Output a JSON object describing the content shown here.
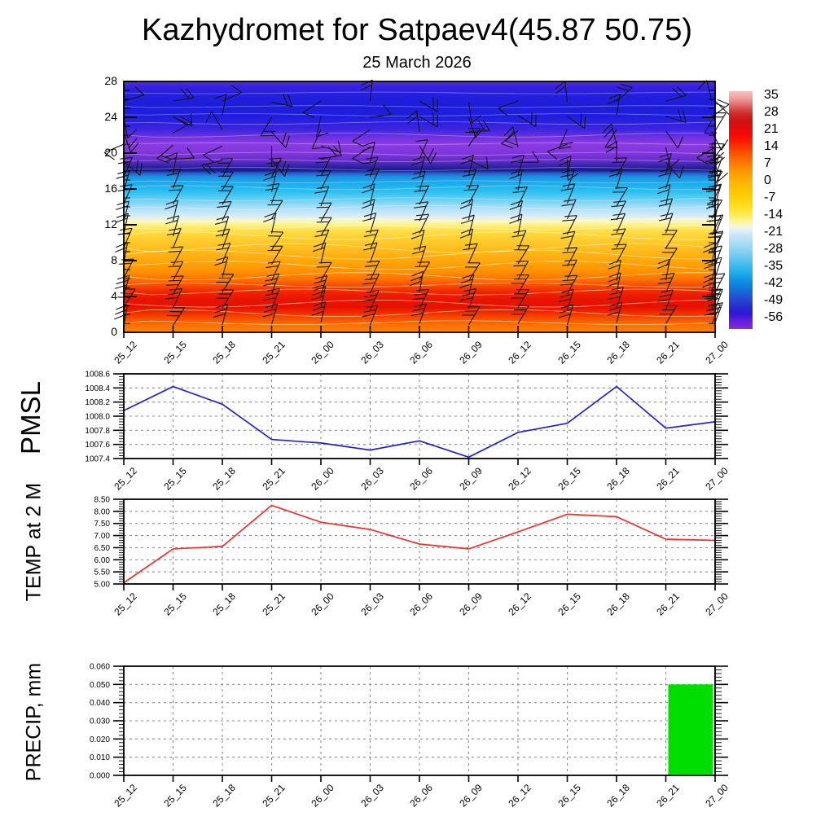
{
  "title": "Kazhydromet for Satpaev4(45.87 50.75)",
  "subtitle": "25 March 2026",
  "colors": {
    "background": "#ffffff",
    "frame": "#000000",
    "grid": "#8f8f8f",
    "wind_barb": "#151515",
    "contour_line": "#ffffd2",
    "pmsl_line": "#2323cc",
    "temp_line": "#f03030",
    "precip_bar": "#00dd00"
  },
  "chart_data": {
    "x_categories": [
      "25_12",
      "25_15",
      "25_18",
      "25_21",
      "26_00",
      "26_03",
      "26_06",
      "26_09",
      "26_12",
      "26_15",
      "26_18",
      "26_21",
      "27_00"
    ],
    "panels": [
      {
        "type": "heatmap",
        "name": "temperature-height cross-section with wind barbs",
        "ylim": [
          0,
          28
        ],
        "yticks": [
          0,
          4,
          8,
          12,
          16,
          20,
          24,
          28
        ],
        "colorbar_ticks": [
          "35",
          "28",
          "21",
          "14",
          "7",
          "0",
          "-7",
          "-14",
          "-21",
          "-28",
          "-35",
          "-42",
          "-49",
          "-56"
        ],
        "gradient_stops": [
          [
            0,
            "#5a30d2"
          ],
          [
            2,
            "#3522e0"
          ],
          [
            5,
            "#2520de"
          ],
          [
            9,
            "#1d1dd8"
          ],
          [
            14,
            "#1e1ede"
          ],
          [
            19,
            "#3a25e0"
          ],
          [
            22,
            "#6c30e0"
          ],
          [
            25,
            "#8a3ce2"
          ],
          [
            29,
            "#7e34da"
          ],
          [
            32,
            "#5e2ac6"
          ],
          [
            34.5,
            "#23209a"
          ],
          [
            35.5,
            "#1b1b86"
          ],
          [
            36.5,
            "#2c58c8"
          ],
          [
            38,
            "#1e90e0"
          ],
          [
            40,
            "#18a8ec"
          ],
          [
            44,
            "#2cc0f2"
          ],
          [
            47,
            "#66cff4"
          ],
          [
            50,
            "#a5def7"
          ],
          [
            53,
            "#cfeaf9"
          ],
          [
            55,
            "#ecf4e2"
          ],
          [
            56,
            "#fdf7b4"
          ],
          [
            57.5,
            "#ffee7e"
          ],
          [
            59,
            "#ffe255"
          ],
          [
            61,
            "#ffd63a"
          ],
          [
            65,
            "#ffc527"
          ],
          [
            69,
            "#ffb215"
          ],
          [
            73,
            "#ffa008"
          ],
          [
            76,
            "#ff8f00"
          ],
          [
            79,
            "#fd7000"
          ],
          [
            81.5,
            "#f84a00"
          ],
          [
            84,
            "#f02500"
          ],
          [
            87,
            "#e91300"
          ],
          [
            90,
            "#e81100"
          ],
          [
            92,
            "#ee2a00"
          ],
          [
            94.5,
            "#f64f00"
          ],
          [
            97,
            "#fc6f00"
          ],
          [
            100,
            "#ff8400"
          ]
        ],
        "colorbar_stops": [
          [
            0,
            "#f7c0c0"
          ],
          [
            3,
            "#f0a0a0"
          ],
          [
            6,
            "#e06868"
          ],
          [
            9,
            "#d03030"
          ],
          [
            12,
            "#cd1414"
          ],
          [
            15,
            "#df0d0d"
          ],
          [
            18,
            "#f40808"
          ],
          [
            21,
            "#fd1b00"
          ],
          [
            25,
            "#ff4600"
          ],
          [
            29,
            "#ff6f00"
          ],
          [
            33,
            "#ff9200"
          ],
          [
            38,
            "#ffb300"
          ],
          [
            43,
            "#ffcb00"
          ],
          [
            48,
            "#ffdd18"
          ],
          [
            52,
            "#ffec52"
          ],
          [
            55,
            "#fdf6a0"
          ],
          [
            57.5,
            "#eef5ef"
          ],
          [
            60,
            "#cfe9f8"
          ],
          [
            64,
            "#a8dcf4"
          ],
          [
            68,
            "#7fcff1"
          ],
          [
            72,
            "#4fc0ee"
          ],
          [
            76,
            "#22aeea"
          ],
          [
            79,
            "#1097e4"
          ],
          [
            82,
            "#0d7edc"
          ],
          [
            85,
            "#1c62d8"
          ],
          [
            88,
            "#2544d2"
          ],
          [
            91,
            "#2629cc"
          ],
          [
            93.5,
            "#2b18d2"
          ],
          [
            96,
            "#5a1cdc"
          ],
          [
            100,
            "#8f26e6"
          ]
        ]
      },
      {
        "type": "line",
        "name": "PMSL",
        "color": "#2323cc",
        "ylim": [
          1007.4,
          1008.6
        ],
        "yticks": [
          1007.4,
          1007.6,
          1007.8,
          1008.0,
          1008.2,
          1008.4,
          1008.6
        ],
        "ylabels": [
          "1007.4",
          "1007.6",
          "1007.8",
          "1008.0",
          "1008.2",
          "1008.4",
          "1008.6"
        ],
        "minor_step": 0.04,
        "values": [
          1008.08,
          1008.42,
          1008.17,
          1007.67,
          1007.62,
          1007.52,
          1007.65,
          1007.42,
          1007.77,
          1007.9,
          1008.42,
          1007.83,
          1007.92
        ]
      },
      {
        "type": "line",
        "name": "TEMP at 2 M",
        "color": "#f03030",
        "ylim": [
          5.0,
          8.5
        ],
        "yticks": [
          5.0,
          5.5,
          6.0,
          6.5,
          7.0,
          7.5,
          8.0,
          8.5
        ],
        "ylabels": [
          "5.00",
          "5.50",
          "6.00",
          "6.50",
          "7.00",
          "7.50",
          "8.00",
          "8.50"
        ],
        "minor_step": 0.1,
        "values": [
          5.05,
          6.45,
          6.55,
          8.25,
          7.55,
          7.25,
          6.65,
          6.45,
          7.15,
          7.88,
          7.78,
          6.85,
          6.8
        ]
      },
      {
        "type": "bar",
        "name": "PRECIP, mm",
        "color": "#00dd00",
        "ylim": [
          0.0,
          0.06
        ],
        "yticks": [
          0.0,
          0.01,
          0.02,
          0.03,
          0.04,
          0.05,
          0.06
        ],
        "ylabels": [
          "0.000",
          "0.010",
          "0.020",
          "0.030",
          "0.040",
          "0.050",
          "0.060"
        ],
        "minor_step": 0.002,
        "values": [
          0,
          0,
          0,
          0,
          0,
          0,
          0,
          0,
          0,
          0,
          0,
          0,
          0.05
        ]
      }
    ]
  }
}
